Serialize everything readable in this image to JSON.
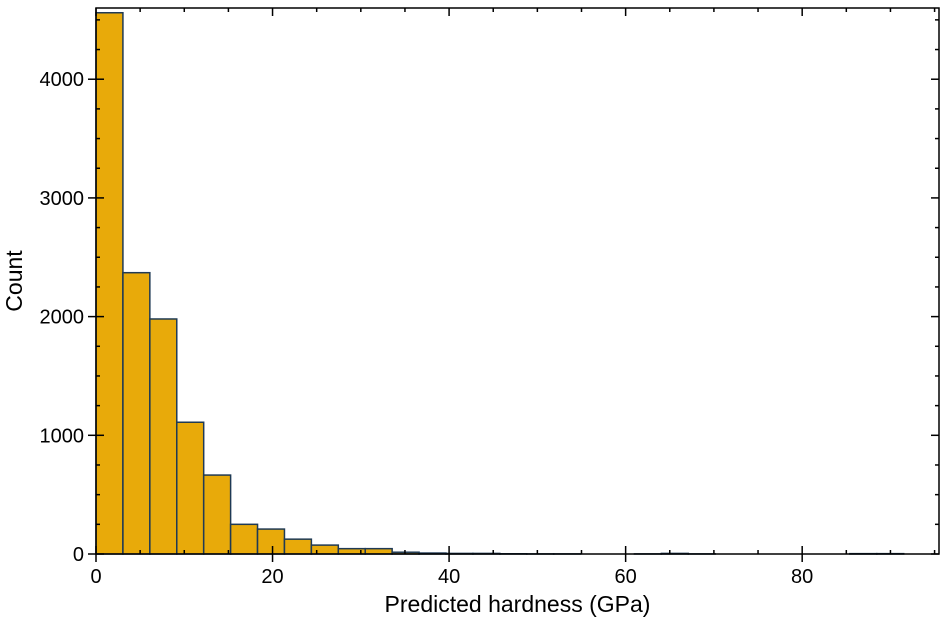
{
  "chart_data": {
    "type": "bar",
    "xlabel": "Predicted hardness (GPa)",
    "ylabel": "Count",
    "xlim": [
      0,
      95.5
    ],
    "ylim": [
      0,
      4600
    ],
    "x_ticks": [
      0,
      20,
      40,
      60,
      80
    ],
    "y_ticks": [
      0,
      1000,
      2000,
      3000,
      4000
    ],
    "x_tick_labels": [
      "0",
      "20",
      "40",
      "60",
      "80"
    ],
    "y_tick_labels": [
      "0",
      "1000",
      "2000",
      "3000",
      "4000"
    ],
    "grid": false,
    "bin_width": 3.05,
    "bin_starts": [
      0,
      3.05,
      6.1,
      9.15,
      12.2,
      15.25,
      18.3,
      21.35,
      24.4,
      27.45,
      30.5,
      33.55,
      36.6,
      39.65,
      42.7,
      45.75,
      48.8,
      51.85,
      54.9,
      57.95,
      61.0,
      64.05,
      67.1,
      70.15,
      73.2,
      76.25,
      79.3,
      82.35,
      85.4,
      88.45
    ],
    "values": [
      4560,
      2370,
      1980,
      1110,
      665,
      250,
      210,
      125,
      75,
      45,
      45,
      15,
      8,
      5,
      5,
      2,
      1,
      1,
      0,
      0,
      1,
      5,
      1,
      0,
      0,
      0,
      0,
      0,
      3,
      3
    ],
    "colors": {
      "bar_fill": "#E8AA0A",
      "bar_edge": "#1F3A55",
      "axis": "#000000"
    }
  }
}
